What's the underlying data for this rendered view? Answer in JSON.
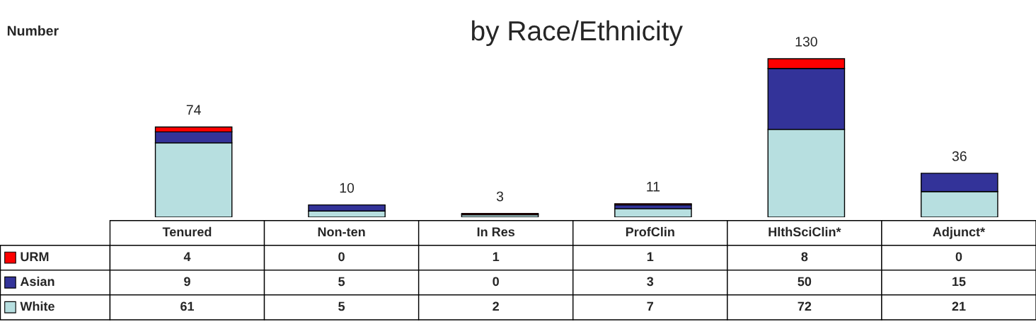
{
  "chart_data": {
    "type": "bar",
    "title": "by Race/Ethnicity",
    "ylabel": "Number",
    "stacked": true,
    "categories": [
      "Tenured",
      "Non-ten",
      "In Res",
      "ProfClin",
      "HlthSciClin*",
      "Adjunct*"
    ],
    "series": [
      {
        "name": "White",
        "color": "#b7dfe0",
        "values": [
          61,
          5,
          2,
          7,
          72,
          21
        ]
      },
      {
        "name": "Asian",
        "color": "#333399",
        "values": [
          9,
          5,
          0,
          3,
          50,
          15
        ]
      },
      {
        "name": "URM",
        "color": "#ff0000",
        "values": [
          4,
          0,
          1,
          1,
          8,
          0
        ]
      }
    ],
    "data_labels": true,
    "totals": [
      "74",
      "10",
      "3",
      "11",
      "130",
      "36"
    ],
    "legend": "bottom left"
  }
}
